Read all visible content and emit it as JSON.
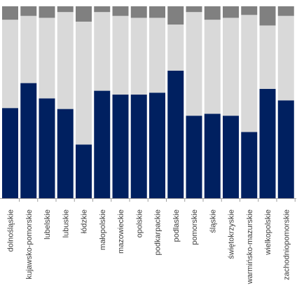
{
  "chart_data": {
    "type": "bar",
    "stacked": true,
    "percent_stacked": true,
    "grid": false,
    "legend": "none",
    "ylim": [
      0,
      100
    ],
    "categories": [
      "dolnośląskie",
      "kujawsko-pomorskie",
      "lubelskie",
      "lubuskie",
      "łódzkie",
      "małopolskie",
      "mazowieckie",
      "opolskie",
      "podkarpackie",
      "podlaskie",
      "pomorskie",
      "śląskie",
      "świętokrzyskie",
      "warmińsko-mazurskie",
      "wielkopolskie",
      "zachodniopomorskie"
    ],
    "series": [
      {
        "color": "#002060",
        "values": [
          47,
          60,
          52,
          46.5,
          28,
          56,
          54,
          54,
          55,
          66.5,
          43,
          44,
          43,
          34.5,
          57,
          51
        ]
      },
      {
        "color": "#d9d9d9",
        "values": [
          46,
          35,
          42,
          50.5,
          64,
          41,
          41,
          40,
          39,
          24,
          54,
          49,
          51,
          61,
          33,
          44
        ]
      },
      {
        "color": "#808080",
        "values": [
          7,
          5,
          6,
          3,
          8,
          3,
          5,
          6,
          6,
          9.5,
          3,
          7,
          6,
          4.5,
          10,
          5
        ]
      }
    ]
  }
}
